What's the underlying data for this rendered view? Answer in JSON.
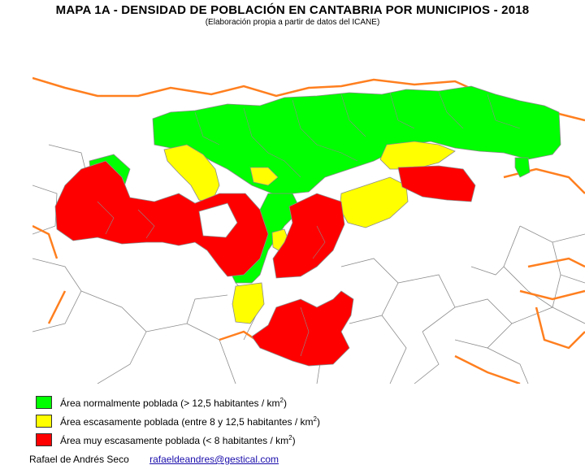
{
  "title": "MAPA 1A - DENSIDAD DE POBLACIÓN EN CANTABRIA POR MUNICIPIOS - 2018",
  "subtitle": "(Elaboración propia a partir de datos del ICANE)",
  "legend": {
    "items": [
      {
        "color": "#00ff00",
        "text": "Área normalmente poblada (> 12,5 habitantes / km",
        "sup": "2",
        "tail": ")"
      },
      {
        "color": "#ffff00",
        "text": "Área escasamente poblada (entre 8 y 12,5  habitantes / km",
        "sup": "2",
        "tail": ")"
      },
      {
        "color": "#ff0000",
        "text": "Área muy escasamente poblada (< 8 habitantes / km",
        "sup": "2",
        "tail": ")"
      }
    ]
  },
  "footer": {
    "author": "Rafael de Andrés Seco",
    "email": "rafaeldeandres@gestical.com"
  },
  "colors": {
    "normal": "#00ff00",
    "scarce": "#ffff00",
    "very_scarce": "#ff0000",
    "boundary": "#ff7f1f",
    "municipal_line": "#8c8c8c"
  }
}
